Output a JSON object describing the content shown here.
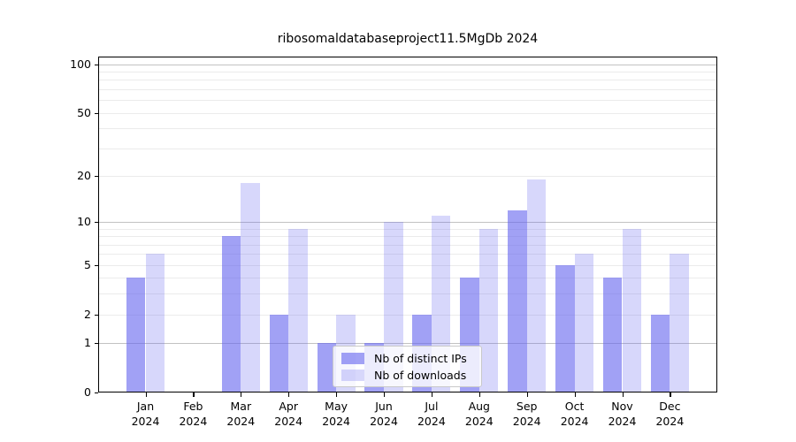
{
  "chart_data": {
    "type": "bar",
    "title": "ribosomaldatabaseproject11.5MgDb 2024",
    "categories": [
      "Jan",
      "Feb",
      "Mar",
      "Apr",
      "May",
      "Jun",
      "Jul",
      "Aug",
      "Sep",
      "Oct",
      "Nov",
      "Dec"
    ],
    "category_year": "2024",
    "series": [
      {
        "name": "Nb of distinct IPs",
        "base_color": "#6666ee",
        "fill": "rgba(102,102,238,0.61)",
        "values": [
          4,
          0,
          8,
          2,
          1,
          1,
          2,
          4,
          12,
          5,
          4,
          2
        ]
      },
      {
        "name": "Nb of downloads",
        "base_color": "#6666ee",
        "fill": "rgba(102,102,238,0.26)",
        "values": [
          6,
          0,
          18,
          9,
          2,
          10,
          11,
          9,
          19,
          6,
          9,
          6
        ]
      }
    ],
    "yscale": "log1p",
    "ylim": [
      0,
      112
    ],
    "yticks": [
      0,
      1,
      2,
      5,
      10,
      20,
      50,
      100
    ],
    "grid": {
      "major": [
        1,
        10,
        100
      ],
      "minor": [
        2,
        3,
        4,
        5,
        6,
        7,
        8,
        9,
        20,
        30,
        40,
        50,
        60,
        70,
        80,
        90
      ]
    },
    "legend_position": "inside-bottom-center"
  }
}
